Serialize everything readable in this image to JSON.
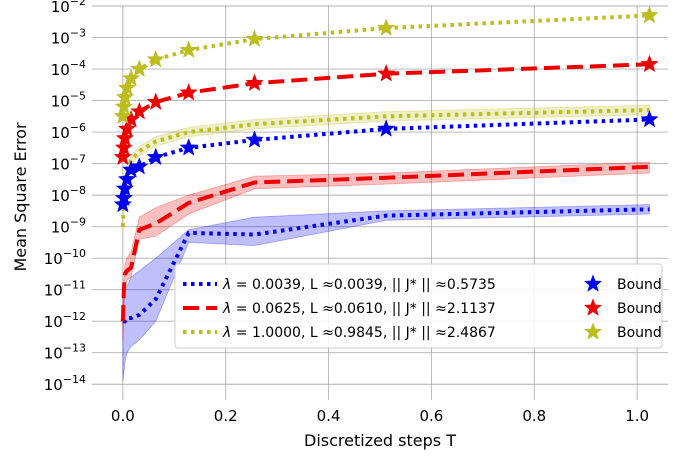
{
  "chart_data": {
    "type": "line",
    "xlabel": "Discretized steps T",
    "ylabel": "Mean Square Error",
    "yscale": "log",
    "xlim": [
      -0.06,
      1.06
    ],
    "ylim_exp": [
      -14.5,
      -2
    ],
    "grid": true,
    "x_ticks": [
      {
        "value": 0.0,
        "label": "0.0"
      },
      {
        "value": 0.2,
        "label": "0.2"
      },
      {
        "value": 0.4,
        "label": "0.4"
      },
      {
        "value": 0.6,
        "label": "0.6"
      },
      {
        "value": 0.8,
        "label": "0.8"
      },
      {
        "value": 1.0,
        "label": "1.0"
      }
    ],
    "y_ticks": [
      {
        "exp": -14,
        "base": "10",
        "sup": "−14"
      },
      {
        "exp": -13,
        "base": "10",
        "sup": "−13"
      },
      {
        "exp": -12,
        "base": "10",
        "sup": "−12"
      },
      {
        "exp": -11,
        "base": "10",
        "sup": "−11"
      },
      {
        "exp": -10,
        "base": "10",
        "sup": "−10"
      },
      {
        "exp": -9,
        "base": "10",
        "sup": "−9"
      },
      {
        "exp": -8,
        "base": "10",
        "sup": "−8"
      },
      {
        "exp": -7,
        "base": "10",
        "sup": "−7"
      },
      {
        "exp": -6,
        "base": "10",
        "sup": "−6"
      },
      {
        "exp": -5,
        "base": "10",
        "sup": "−5"
      },
      {
        "exp": -4,
        "base": "10",
        "sup": "−4"
      },
      {
        "exp": -3,
        "base": "10",
        "sup": "−3"
      },
      {
        "exp": -2,
        "base": "10",
        "sup": "−2"
      }
    ],
    "bound_x": [
      0.0,
      0.002,
      0.004,
      0.008,
      0.016,
      0.032,
      0.064,
      0.128,
      0.256,
      0.512,
      1.024
    ],
    "series": [
      {
        "name": "lambda-0.0039",
        "color": "#0000ee",
        "style": "dotted",
        "legend": {
          "lambda": "0.0039",
          "L": "0.0039",
          "J": "0.5735"
        },
        "x": [
          0.0,
          0.002,
          0.004,
          0.008,
          0.016,
          0.032,
          0.064,
          0.128,
          0.256,
          0.512,
          1.024
        ],
        "log10_mse": [
          -12.0,
          -12.0,
          -12.0,
          -11.9,
          -11.9,
          -11.8,
          -11.3,
          -9.2,
          -9.25,
          -8.65,
          -8.45
        ],
        "log10_band_upper": [
          -11.2,
          -11.2,
          -11.1,
          -10.9,
          -10.6,
          -10.4,
          -10.0,
          -9.1,
          -8.7,
          -8.5,
          -8.3
        ],
        "log10_band_lower": [
          -13.9,
          -13.6,
          -13.3,
          -13.0,
          -12.8,
          -12.6,
          -12.0,
          -9.5,
          -9.6,
          -8.8,
          -8.6
        ],
        "log10_bound": [
          -8.3,
          -8.1,
          -7.8,
          -7.5,
          -7.2,
          -7.1,
          -6.8,
          -6.5,
          -6.25,
          -5.9,
          -5.6
        ]
      },
      {
        "name": "lambda-0.0625",
        "color": "#ee0000",
        "style": "dashed",
        "legend": {
          "lambda": "0.0625",
          "L": "0.0610",
          "J": "2.1137"
        },
        "x": [
          0.0,
          0.002,
          0.004,
          0.008,
          0.016,
          0.032,
          0.064,
          0.128,
          0.256,
          0.512,
          1.024
        ],
        "log10_mse": [
          -12.0,
          -11.0,
          -10.5,
          -10.4,
          -10.3,
          -9.1,
          -8.9,
          -8.25,
          -7.6,
          -7.45,
          -7.1
        ],
        "log10_band_upper": [
          -11.5,
          -10.6,
          -10.2,
          -10.0,
          -9.8,
          -8.7,
          -8.4,
          -8.0,
          -7.4,
          -7.3,
          -6.95
        ],
        "log10_band_lower": [
          -12.6,
          -11.6,
          -10.9,
          -10.7,
          -10.6,
          -9.4,
          -9.3,
          -8.6,
          -7.8,
          -7.65,
          -7.3
        ],
        "log10_bound": [
          -6.8,
          -6.5,
          -6.2,
          -5.9,
          -5.6,
          -5.35,
          -5.05,
          -4.75,
          -4.45,
          -4.15,
          -3.85
        ]
      },
      {
        "name": "lambda-1.0000",
        "color": "#bdbd1f",
        "style": "dotted",
        "legend": {
          "lambda": "1.0000",
          "L": "0.9845",
          "J": "2.4867"
        },
        "x": [
          0.0,
          0.002,
          0.004,
          0.008,
          0.016,
          0.032,
          0.064,
          0.128,
          0.256,
          0.512,
          1.024
        ],
        "log10_mse": [
          -9.0,
          -8.2,
          -7.5,
          -7.2,
          -6.9,
          -6.6,
          -6.3,
          -6.0,
          -5.75,
          -5.5,
          -5.3
        ],
        "log10_band_upper": [
          -8.8,
          -8.0,
          -7.35,
          -7.05,
          -6.75,
          -6.45,
          -6.15,
          -5.85,
          -5.6,
          -5.35,
          -5.15
        ],
        "log10_band_lower": [
          -9.2,
          -8.4,
          -7.65,
          -7.35,
          -7.05,
          -6.75,
          -6.45,
          -6.15,
          -5.9,
          -5.65,
          -5.45
        ],
        "log10_bound": [
          -5.5,
          -5.2,
          -4.9,
          -4.6,
          -4.3,
          -4.0,
          -3.7,
          -3.4,
          -3.05,
          -2.7,
          -2.3
        ]
      }
    ],
    "legend_labels": {
      "lambda_symbol": "λ",
      "eq": " = ",
      "L_prefix": ", L ",
      "approx": "≈",
      "J_prefix": ", || J* || ",
      "bound": "Bound"
    },
    "legend_position": "lower-right"
  }
}
